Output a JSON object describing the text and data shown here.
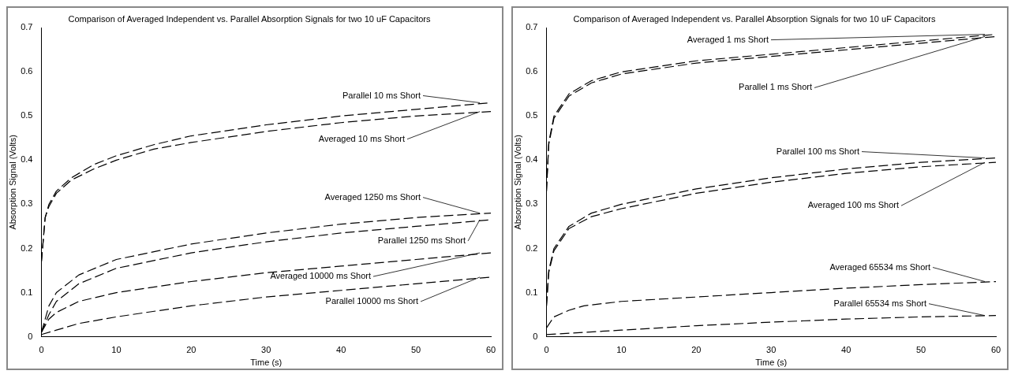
{
  "chart_data": [
    {
      "type": "line",
      "title": "Comparison of Averaged Independent vs. Parallel Absorption Signals for two 10 uF Capacitors",
      "xlabel": "Time (s)",
      "ylabel": "Absorption Signal (Volts)",
      "xlim": [
        0,
        60
      ],
      "xticks": [
        0,
        10,
        20,
        30,
        40,
        50,
        60
      ],
      "ylim": [
        0,
        0.7
      ],
      "yticks": [
        0,
        0.1,
        0.2,
        0.3,
        0.4,
        0.5,
        0.6,
        0.7
      ],
      "line_style": "dashed",
      "marker": "none",
      "series": [
        {
          "name": "Parallel 10 ms Short",
          "color": "#000000",
          "x": [
            0,
            0.5,
            1,
            2,
            4,
            7,
            10,
            15,
            20,
            30,
            40,
            50,
            60
          ],
          "values": [
            0.17,
            0.27,
            0.3,
            0.33,
            0.36,
            0.39,
            0.41,
            0.435,
            0.455,
            0.48,
            0.5,
            0.515,
            0.53
          ]
        },
        {
          "name": "Averaged 10 ms Short",
          "color": "#000000",
          "x": [
            0,
            0.5,
            1,
            2,
            4,
            7,
            10,
            15,
            20,
            30,
            40,
            50,
            60
          ],
          "values": [
            0.17,
            0.27,
            0.295,
            0.325,
            0.355,
            0.38,
            0.4,
            0.425,
            0.44,
            0.465,
            0.485,
            0.5,
            0.51
          ]
        },
        {
          "name": "Averaged 1250 ms Short",
          "color": "#000000",
          "x": [
            0,
            1,
            2,
            5,
            10,
            20,
            30,
            40,
            50,
            60
          ],
          "values": [
            0.01,
            0.07,
            0.1,
            0.14,
            0.175,
            0.21,
            0.235,
            0.255,
            0.27,
            0.28
          ]
        },
        {
          "name": "Parallel 1250 ms Short",
          "color": "#000000",
          "x": [
            0,
            1,
            2,
            5,
            10,
            20,
            30,
            40,
            50,
            60
          ],
          "values": [
            0.01,
            0.05,
            0.08,
            0.12,
            0.155,
            0.19,
            0.215,
            0.235,
            0.25,
            0.265
          ]
        },
        {
          "name": "Averaged 10000 ms Short",
          "color": "#000000",
          "x": [
            0,
            1,
            2,
            5,
            10,
            20,
            30,
            40,
            50,
            60
          ],
          "values": [
            0.01,
            0.04,
            0.055,
            0.08,
            0.1,
            0.125,
            0.145,
            0.16,
            0.175,
            0.19
          ]
        },
        {
          "name": "Parallel 10000 ms Short",
          "color": "#000000",
          "x": [
            0,
            2,
            5,
            10,
            20,
            30,
            40,
            50,
            60
          ],
          "values": [
            0.005,
            0.015,
            0.03,
            0.045,
            0.07,
            0.09,
            0.105,
            0.12,
            0.135
          ]
        }
      ]
    },
    {
      "type": "line",
      "title": "Comparison of Averaged Independent vs. Parallel Absorption Signals for two 10 uF Capacitors",
      "xlabel": "Time (s)",
      "ylabel": "Absorption Signal (Volts)",
      "xlim": [
        0,
        60
      ],
      "xticks": [
        0,
        10,
        20,
        30,
        40,
        50,
        60
      ],
      "ylim": [
        0,
        0.7
      ],
      "yticks": [
        0,
        0.1,
        0.2,
        0.3,
        0.4,
        0.5,
        0.6,
        0.7
      ],
      "line_style": "dashed",
      "marker": "none",
      "series": [
        {
          "name": "Averaged 1 ms Short",
          "color": "#000000",
          "x": [
            0,
            0.3,
            1,
            3,
            6,
            10,
            20,
            30,
            40,
            50,
            60
          ],
          "values": [
            0.33,
            0.44,
            0.5,
            0.55,
            0.58,
            0.6,
            0.625,
            0.64,
            0.655,
            0.67,
            0.685
          ]
        },
        {
          "name": "Parallel 1 ms Short",
          "color": "#000000",
          "x": [
            0,
            0.3,
            1,
            3,
            6,
            10,
            20,
            30,
            40,
            50,
            60
          ],
          "values": [
            0.33,
            0.435,
            0.495,
            0.545,
            0.575,
            0.595,
            0.62,
            0.635,
            0.65,
            0.665,
            0.68
          ]
        },
        {
          "name": "Parallel 100 ms Short",
          "color": "#000000",
          "x": [
            0,
            0.3,
            1,
            3,
            6,
            10,
            20,
            30,
            40,
            50,
            60
          ],
          "values": [
            0.07,
            0.15,
            0.2,
            0.25,
            0.28,
            0.3,
            0.335,
            0.36,
            0.38,
            0.395,
            0.405
          ]
        },
        {
          "name": "Averaged 100 ms Short",
          "color": "#000000",
          "x": [
            0,
            0.3,
            1,
            3,
            6,
            10,
            20,
            30,
            40,
            50,
            60
          ],
          "values": [
            0.07,
            0.145,
            0.195,
            0.245,
            0.272,
            0.29,
            0.325,
            0.35,
            0.37,
            0.385,
            0.395
          ]
        },
        {
          "name": "Averaged 65534 ms Short",
          "color": "#000000",
          "x": [
            0,
            1,
            3,
            5,
            10,
            20,
            30,
            40,
            50,
            60
          ],
          "values": [
            0.02,
            0.045,
            0.06,
            0.07,
            0.08,
            0.09,
            0.1,
            0.11,
            0.118,
            0.125
          ]
        },
        {
          "name": "Parallel 65534 ms Short",
          "color": "#000000",
          "x": [
            0,
            10,
            20,
            30,
            40,
            50,
            60
          ],
          "values": [
            0.005,
            0.015,
            0.025,
            0.033,
            0.04,
            0.045,
            0.048
          ]
        }
      ]
    }
  ]
}
